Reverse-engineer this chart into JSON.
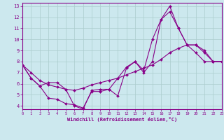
{
  "background_color": "#cce8ee",
  "line_color": "#880088",
  "grid_color": "#aacccc",
  "xlabel": "Windchill (Refroidissement éolien,°C)",
  "xlim": [
    0,
    23
  ],
  "ylim": [
    3.7,
    13.3
  ],
  "xticks": [
    0,
    1,
    2,
    3,
    4,
    5,
    6,
    7,
    8,
    9,
    10,
    11,
    12,
    13,
    14,
    15,
    16,
    17,
    18,
    19,
    20,
    21,
    22,
    23
  ],
  "yticks": [
    4,
    5,
    6,
    7,
    8,
    9,
    10,
    11,
    12,
    13
  ],
  "line1_x": [
    0,
    1,
    2,
    3,
    4,
    5,
    6,
    7,
    8,
    9,
    10,
    11,
    12,
    13,
    14,
    15,
    16,
    17,
    18,
    19,
    20,
    21,
    22,
    23
  ],
  "line1_y": [
    7.7,
    6.5,
    5.8,
    6.1,
    6.1,
    5.5,
    4.0,
    3.7,
    5.4,
    5.5,
    5.5,
    4.9,
    7.4,
    8.0,
    7.0,
    8.0,
    11.8,
    13.0,
    11.0,
    9.5,
    8.8,
    8.0,
    8.0,
    8.0
  ],
  "line2_x": [
    0,
    1,
    2,
    3,
    4,
    5,
    6,
    7,
    8,
    9,
    10,
    11,
    12,
    13,
    14,
    15,
    16,
    17,
    18,
    19,
    20,
    21,
    22,
    23
  ],
  "line2_y": [
    7.7,
    6.5,
    5.8,
    4.7,
    4.6,
    4.2,
    4.1,
    3.8,
    5.3,
    5.3,
    5.5,
    6.5,
    7.5,
    8.0,
    7.2,
    10.0,
    11.8,
    12.5,
    11.0,
    9.5,
    9.5,
    8.8,
    8.0,
    8.0
  ],
  "line3_x": [
    0,
    1,
    2,
    3,
    4,
    5,
    6,
    7,
    8,
    9,
    10,
    11,
    12,
    13,
    14,
    15,
    16,
    17,
    18,
    19,
    20,
    21,
    22,
    23
  ],
  "line3_y": [
    7.7,
    7.0,
    6.3,
    5.9,
    5.7,
    5.5,
    5.4,
    5.6,
    5.9,
    6.1,
    6.3,
    6.5,
    6.8,
    7.1,
    7.4,
    7.7,
    8.2,
    8.8,
    9.2,
    9.5,
    9.5,
    9.0,
    8.0,
    8.0
  ]
}
